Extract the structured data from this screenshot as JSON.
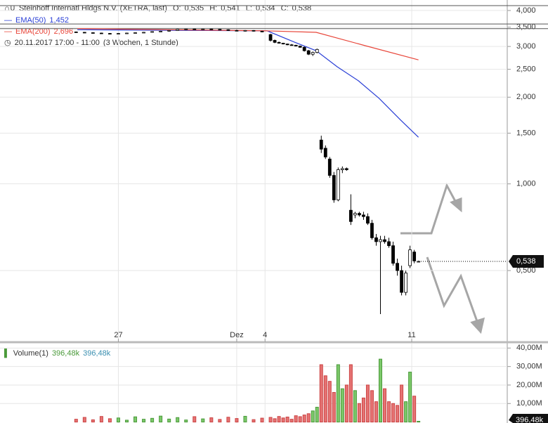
{
  "chart_data": [
    {
      "type": "candlestick",
      "title": "Steinhoff Internatl Hldgs N.V. (XETRA, last)",
      "ohlc_labels": [
        "O:",
        "H:",
        "L:",
        "C:"
      ],
      "ohlc_values": [
        "0,535",
        "0,541",
        "0,534",
        "0,538"
      ],
      "period": "20.11.2017 17:00 - 11:00",
      "interval": "(3 Wochen, 1 Stunde)",
      "x": [
        18,
        20,
        22,
        24,
        26,
        28,
        30,
        32,
        34,
        36,
        38,
        40,
        42,
        44,
        46,
        48,
        50,
        52,
        54,
        56,
        58,
        60,
        62,
        64,
        65,
        66,
        67,
        68,
        69,
        70,
        71,
        72,
        73,
        74,
        75,
        76,
        77,
        78,
        79,
        80,
        81,
        82,
        83,
        84,
        85,
        86,
        87,
        88,
        89,
        90,
        91,
        92,
        93,
        94,
        95,
        96,
        97,
        98,
        99
      ],
      "open": [
        3.37,
        3.36,
        3.35,
        3.34,
        3.33,
        3.32,
        3.33,
        3.34,
        3.35,
        3.36,
        3.38,
        3.39,
        3.41,
        3.44,
        3.45,
        3.44,
        3.45,
        3.44,
        3.43,
        3.41,
        3.4,
        3.41,
        3.39,
        3.3,
        3.15,
        3.1,
        3.08,
        3.06,
        3.04,
        3.03,
        3.01,
        2.98,
        2.9,
        2.82,
        2.86,
        1.42,
        1.33,
        1.22,
        1.07,
        0.88,
        1.12,
        1.13,
        0.81,
        0.78,
        0.79,
        0.78,
        0.77,
        0.73,
        0.65,
        0.63,
        0.64,
        0.63,
        0.61,
        0.53,
        0.5,
        0.42,
        0.52,
        0.58,
        0.535
      ],
      "high": [
        3.38,
        3.37,
        3.36,
        3.35,
        3.34,
        3.34,
        3.35,
        3.36,
        3.37,
        3.39,
        3.4,
        3.42,
        3.45,
        3.46,
        3.46,
        3.46,
        3.46,
        3.45,
        3.44,
        3.43,
        3.42,
        3.42,
        3.4,
        3.32,
        3.17,
        3.12,
        3.09,
        3.07,
        3.06,
        3.04,
        3.02,
        3.0,
        2.92,
        2.88,
        2.95,
        1.47,
        1.36,
        1.24,
        1.1,
        1.14,
        1.15,
        1.14,
        0.92,
        0.8,
        0.8,
        0.8,
        0.79,
        0.75,
        0.67,
        0.66,
        0.66,
        0.65,
        0.63,
        0.55,
        0.52,
        0.5,
        0.61,
        0.59,
        0.541
      ],
      "low": [
        3.35,
        3.34,
        3.33,
        3.32,
        3.31,
        3.31,
        3.32,
        3.33,
        3.34,
        3.35,
        3.37,
        3.38,
        3.4,
        3.42,
        3.43,
        3.43,
        3.43,
        3.42,
        3.4,
        3.39,
        3.38,
        3.38,
        3.36,
        3.12,
        3.08,
        3.07,
        3.05,
        3.03,
        3.02,
        3.0,
        2.97,
        2.88,
        2.8,
        2.78,
        2.84,
        1.28,
        1.22,
        1.05,
        0.86,
        0.87,
        1.09,
        1.11,
        0.72,
        0.76,
        0.77,
        0.75,
        0.72,
        0.64,
        0.61,
        0.353,
        0.62,
        0.6,
        0.52,
        0.48,
        0.41,
        0.41,
        0.51,
        0.53,
        0.534
      ],
      "close": [
        3.36,
        3.35,
        3.34,
        3.33,
        3.32,
        3.33,
        3.34,
        3.35,
        3.36,
        3.38,
        3.39,
        3.41,
        3.44,
        3.45,
        3.44,
        3.45,
        3.44,
        3.43,
        3.41,
        3.4,
        3.41,
        3.39,
        3.37,
        3.15,
        3.1,
        3.08,
        3.06,
        3.04,
        3.03,
        3.01,
        2.98,
        2.9,
        2.82,
        2.86,
        2.93,
        1.32,
        1.24,
        1.07,
        0.88,
        1.12,
        1.13,
        1.12,
        0.74,
        0.79,
        0.78,
        0.77,
        0.73,
        0.65,
        0.63,
        0.64,
        0.63,
        0.61,
        0.53,
        0.5,
        0.42,
        0.49,
        0.59,
        0.54,
        0.538
      ],
      "up_color": "#ffffff",
      "down_color": "#000000",
      "series": [
        {
          "name": "EMA(50)",
          "color": "#2a3fd6",
          "value_label": "1,452",
          "x": [
            18.3,
            63.2,
            69.8,
            74.8,
            79.8,
            84.8,
            89.7,
            94.7,
            99
          ],
          "values": [
            3.43,
            3.4,
            3.1,
            2.9,
            2.55,
            2.28,
            1.98,
            1.67,
            1.452
          ]
        },
        {
          "name": "EMA(200)",
          "color": "#e8463a",
          "value_label": "2,696",
          "x": [
            18.3,
            63.2,
            74.8,
            86.4,
            99
          ],
          "values": [
            3.46,
            3.4,
            3.36,
            3.02,
            2.696
          ]
        }
      ],
      "reference_lines": [
        4.16,
        3.59,
        3.46
      ],
      "log_scale": true,
      "grid": true,
      "ylim": [
        0.282,
        4.35
      ],
      "yticks": [
        {
          "value": 4,
          "label": "4,000"
        },
        {
          "value": 3.5,
          "label": "3,500"
        },
        {
          "value": 3,
          "label": "3,000"
        },
        {
          "value": 2.5,
          "label": "2,500"
        },
        {
          "value": 2,
          "label": "2,000"
        },
        {
          "value": 1.5,
          "label": "1,500"
        },
        {
          "value": 1,
          "label": "1,000"
        },
        {
          "value": 0.5,
          "label": "0,500"
        }
      ],
      "xlim": [
        0,
        120
      ],
      "xticks": [
        {
          "value": 28,
          "label": "27"
        },
        {
          "value": 56,
          "label": "Dez"
        },
        {
          "value": 62.7,
          "label": "4"
        },
        {
          "value": 97.4,
          "label": "11"
        }
      ],
      "current_price": {
        "value": 0.538,
        "label": "0,538"
      }
    },
    {
      "type": "bar",
      "label": "Volume(1)",
      "legend_values": [
        "396,48k",
        "396,48k"
      ],
      "values": [
        1500000,
        2500000,
        1200000,
        3000000,
        1800000,
        2200000,
        1000000,
        2800000,
        1500000,
        2000000,
        3200000,
        1600000,
        2400000,
        1100000,
        2900000,
        1700000,
        2300000,
        1400000,
        2600000,
        1900000,
        3100000,
        1300000,
        2100000,
        2500000,
        1800000,
        3000000,
        2200000,
        2700000,
        1500000,
        3400000,
        2900000,
        3800000,
        4500000,
        6000000,
        8000000,
        31000000,
        25000000,
        22000000,
        16000000,
        31000000,
        18000000,
        20000000,
        31000000,
        17000000,
        10000000,
        13000000,
        20000000,
        17000000,
        11000000,
        34000000,
        18000000,
        11000000,
        10000000,
        9000000,
        20000000,
        11000000,
        27000000,
        14000000,
        396480
      ],
      "up_color": "#7cc86a",
      "down_color": "#e57373",
      "ylim": [
        0,
        42400000
      ],
      "yticks": [
        {
          "value": 40000000,
          "label": "40,00M"
        },
        {
          "value": 30000000,
          "label": "30,00M"
        },
        {
          "value": 20000000,
          "label": "20,00M"
        },
        {
          "value": 10000000,
          "label": "10,00M"
        }
      ],
      "current_value": {
        "value": 396480,
        "label": "396,48k"
      }
    }
  ]
}
